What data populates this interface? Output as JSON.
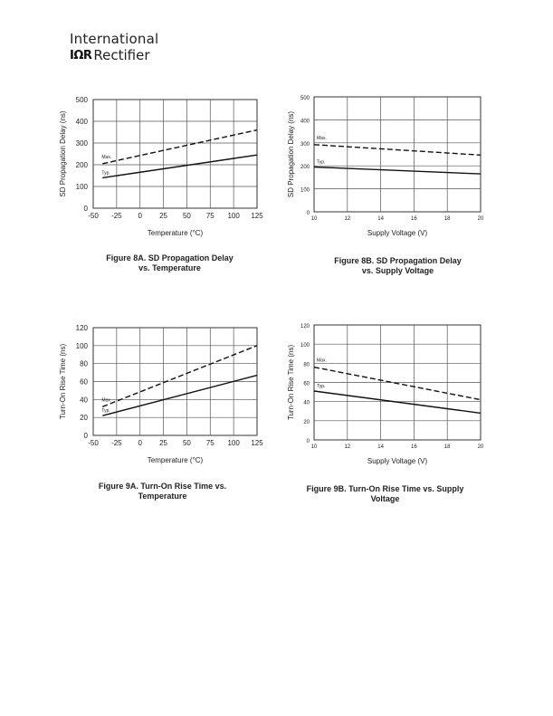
{
  "header": {
    "logo_top": "International",
    "logo_mark": "IΩR",
    "logo_bottom": "Rectifier"
  },
  "captions": {
    "fig8a": [
      "Figure 8A. SD Propagation Delay",
      "vs. Temperature"
    ],
    "fig8b": [
      "Figure 8B. SD Propagation Delay",
      "vs. Supply Voltage"
    ],
    "fig9a": [
      "Figure 9A. Turn-On Rise Time vs.",
      "Temperature"
    ],
    "fig9b": [
      "Figure 9B. Turn-On Rise Time vs. Supply",
      "Voltage"
    ]
  },
  "chart_data": [
    {
      "id": "fig8a",
      "type": "line",
      "xlabel": "Temperature (°C)",
      "ylabel": "SD Propagation Delay (ns)",
      "xlim": [
        -50,
        125
      ],
      "ylim": [
        0,
        500
      ],
      "xticks": [
        -50,
        -25,
        0,
        25,
        50,
        75,
        100,
        125
      ],
      "yticks": [
        0,
        100,
        200,
        300,
        400,
        500
      ],
      "grid": true,
      "series": [
        {
          "name": "Max.",
          "dash": true,
          "x": [
            -40,
            125
          ],
          "y": [
            205,
            360
          ]
        },
        {
          "name": "Typ.",
          "dash": false,
          "x": [
            -40,
            125
          ],
          "y": [
            140,
            245
          ]
        }
      ]
    },
    {
      "id": "fig8b",
      "type": "line",
      "xlabel": "Supply Voltage (V)",
      "ylabel": "SD Propagation Delay (ns)",
      "xlim": [
        10,
        20
      ],
      "ylim": [
        0,
        500
      ],
      "xticks": [
        10,
        12,
        14,
        16,
        18,
        20
      ],
      "yticks": [
        0,
        100,
        200,
        300,
        400,
        500
      ],
      "grid": true,
      "series": [
        {
          "name": "Max.",
          "dash": true,
          "x": [
            10,
            20
          ],
          "y": [
            292,
            247
          ]
        },
        {
          "name": "Typ.",
          "dash": false,
          "x": [
            10,
            20
          ],
          "y": [
            195,
            165
          ]
        }
      ]
    },
    {
      "id": "fig9a",
      "type": "line",
      "xlabel": "Temperature (°C)",
      "ylabel": "Turn-On Rise Time (ns)",
      "xlim": [
        -50,
        125
      ],
      "ylim": [
        0,
        120
      ],
      "xticks": [
        -50,
        -25,
        0,
        25,
        50,
        75,
        100,
        125
      ],
      "yticks": [
        0,
        20,
        40,
        60,
        80,
        100,
        120
      ],
      "grid": true,
      "series": [
        {
          "name": "Max.",
          "dash": true,
          "x": [
            -40,
            125
          ],
          "y": [
            32,
            100
          ]
        },
        {
          "name": "Typ.",
          "dash": false,
          "x": [
            -40,
            125
          ],
          "y": [
            22,
            67
          ]
        }
      ]
    },
    {
      "id": "fig9b",
      "type": "line",
      "xlabel": "Supply Voltage (V)",
      "ylabel": "Turn-On Rise Time (ns)",
      "xlim": [
        10,
        20
      ],
      "ylim": [
        0,
        120
      ],
      "xticks": [
        10,
        12,
        14,
        16,
        18,
        20
      ],
      "yticks": [
        0,
        20,
        40,
        60,
        80,
        100,
        120
      ],
      "grid": true,
      "series": [
        {
          "name": "Max.",
          "dash": true,
          "x": [
            10,
            20
          ],
          "y": [
            76,
            42
          ]
        },
        {
          "name": "Typ.",
          "dash": false,
          "x": [
            10,
            20
          ],
          "y": [
            51,
            28
          ]
        }
      ]
    }
  ]
}
